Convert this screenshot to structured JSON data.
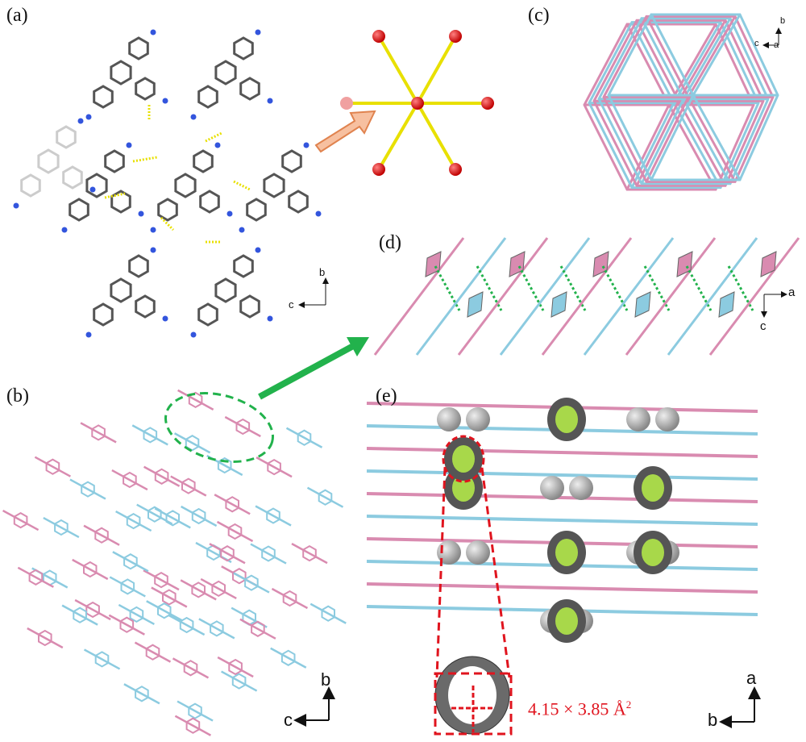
{
  "panels": {
    "a": {
      "label": "(a)",
      "axis_up": "b",
      "axis_left": "c"
    },
    "b": {
      "label": "(b)",
      "axis_up": "b",
      "axis_left": "c"
    },
    "c": {
      "label": "(c)",
      "axis_up": "b",
      "axis_left": "c",
      "axis_right": "a"
    },
    "d": {
      "label": "(d)",
      "axis_right": "a",
      "axis_down": "c"
    },
    "e": {
      "label": "(e)",
      "axis_up": "a",
      "axis_left": "b",
      "pore_size": "4.15 × 3.85 Å",
      "pore_size_sup": "2"
    }
  },
  "colors": {
    "pink": "#d98bb0",
    "blue": "#8ccbe0",
    "green": "#22b24c",
    "red": "#e0141e",
    "yellow": "#e8e000",
    "orange": "#f4a97a",
    "grey": "#8a8a8a"
  }
}
